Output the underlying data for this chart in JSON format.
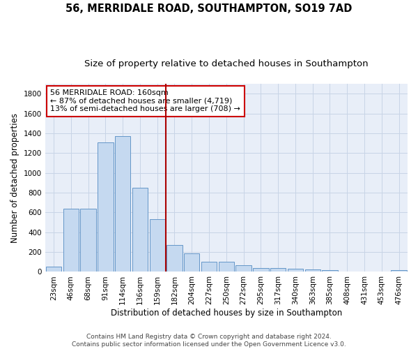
{
  "title": "56, MERRIDALE ROAD, SOUTHAMPTON, SO19 7AD",
  "subtitle": "Size of property relative to detached houses in Southampton",
  "xlabel": "Distribution of detached houses by size in Southampton",
  "ylabel": "Number of detached properties",
  "categories": [
    "23sqm",
    "46sqm",
    "68sqm",
    "91sqm",
    "114sqm",
    "136sqm",
    "159sqm",
    "182sqm",
    "204sqm",
    "227sqm",
    "250sqm",
    "272sqm",
    "295sqm",
    "317sqm",
    "340sqm",
    "363sqm",
    "385sqm",
    "408sqm",
    "431sqm",
    "453sqm",
    "476sqm"
  ],
  "values": [
    50,
    640,
    640,
    1310,
    1370,
    850,
    530,
    270,
    185,
    105,
    105,
    65,
    40,
    35,
    30,
    25,
    15,
    5,
    5,
    5,
    15
  ],
  "bar_color": "#c5d9f0",
  "bar_edge_color": "#6496c8",
  "grid_color": "#c8d4e6",
  "bg_color": "#e8eef8",
  "vline_x": 6.5,
  "vline_color": "#aa0000",
  "annotation_line1": "56 MERRIDALE ROAD: 160sqm",
  "annotation_line2": "← 87% of detached houses are smaller (4,719)",
  "annotation_line3": "13% of semi-detached houses are larger (708) →",
  "annotation_box_color": "#cc0000",
  "footer_line1": "Contains HM Land Registry data © Crown copyright and database right 2024.",
  "footer_line2": "Contains public sector information licensed under the Open Government Licence v3.0.",
  "title_fontsize": 10.5,
  "subtitle_fontsize": 9.5,
  "ylabel_fontsize": 8.5,
  "xlabel_fontsize": 8.5,
  "tick_fontsize": 7.5,
  "footer_fontsize": 6.5,
  "annotation_fontsize": 8,
  "yticks": [
    0,
    200,
    400,
    600,
    800,
    1000,
    1200,
    1400,
    1600,
    1800
  ],
  "ylim": [
    0,
    1900
  ]
}
